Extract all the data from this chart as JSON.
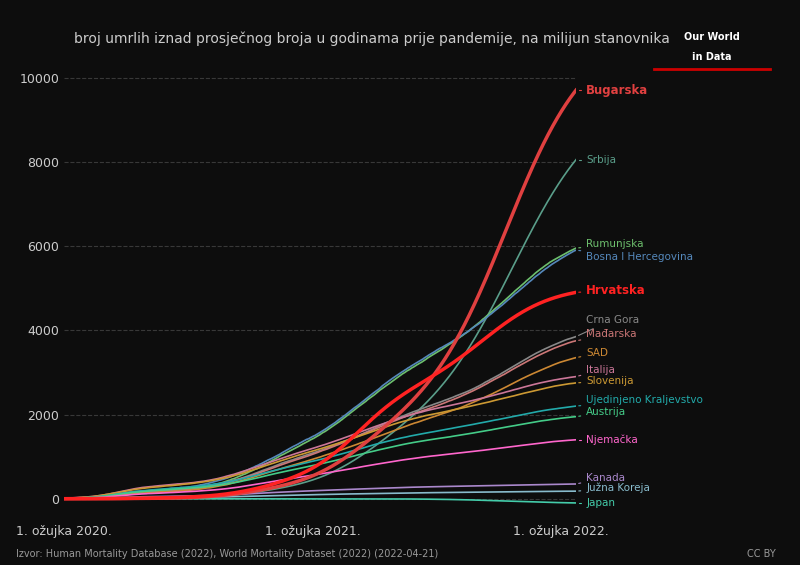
{
  "title": "broj umrlih iznad prosječnog broja u godinama prije pandemije, na milijun stanovnika",
  "xlabel_ticks": [
    "1. ožujka 2020.",
    "1. ožujka 2021.",
    "1. ožujka 2022."
  ],
  "source": "Izvor: Human Mortality Database (2022), World Mortality Dataset (2022) (2022-04-21)",
  "cc": "CC BY",
  "background_color": "#0d0d0d",
  "text_color": "#cccccc",
  "grid_color": "#444444",
  "yticks": [
    0,
    2000,
    4000,
    6000,
    8000,
    10000
  ],
  "countries": [
    {
      "name": "Bugarska",
      "color": "#e04040",
      "bold": true,
      "final_value": 9700
    },
    {
      "name": "Srbija",
      "color": "#5a9e8a",
      "bold": false,
      "final_value": 8050
    },
    {
      "name": "Rumunjska",
      "color": "#6dbf6d",
      "bold": false,
      "final_value": 5950
    },
    {
      "name": "Bosna I Hercegovina",
      "color": "#5588bb",
      "bold": false,
      "final_value": 5900
    },
    {
      "name": "Hrvatska",
      "color": "#ff2222",
      "bold": true,
      "final_value": 4900
    },
    {
      "name": "Crna Gora",
      "color": "#888888",
      "bold": false,
      "final_value": 3850
    },
    {
      "name": "Mađarska",
      "color": "#cc7777",
      "bold": false,
      "final_value": 3750
    },
    {
      "name": "SAD",
      "color": "#cc8833",
      "bold": false,
      "final_value": 3350
    },
    {
      "name": "Italija",
      "color": "#cc7799",
      "bold": false,
      "final_value": 2900
    },
    {
      "name": "Slovenija",
      "color": "#cc9933",
      "bold": false,
      "final_value": 2750
    },
    {
      "name": "Ujedinjeno Kraljevstvo",
      "color": "#22aaaa",
      "bold": false,
      "final_value": 2200
    },
    {
      "name": "Austrija",
      "color": "#44cc88",
      "bold": false,
      "final_value": 1950
    },
    {
      "name": "Njemačka",
      "color": "#ff66cc",
      "bold": false,
      "final_value": 1400
    },
    {
      "name": "Kanada",
      "color": "#aa88cc",
      "bold": false,
      "final_value": 350
    },
    {
      "name": "Južna Koreja",
      "color": "#88bbcc",
      "bold": false,
      "final_value": 180
    },
    {
      "name": "Japan",
      "color": "#44ccaa",
      "bold": false,
      "final_value": -100
    }
  ]
}
